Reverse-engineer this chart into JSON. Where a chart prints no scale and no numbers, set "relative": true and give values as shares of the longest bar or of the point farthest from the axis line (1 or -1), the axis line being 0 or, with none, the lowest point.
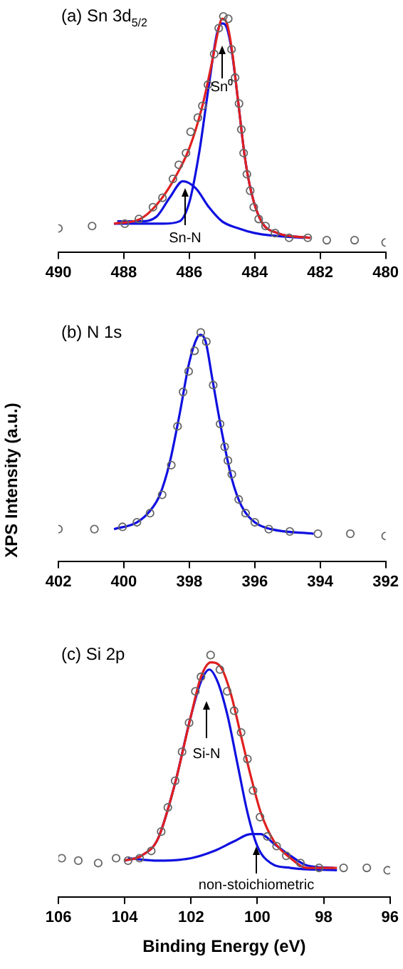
{
  "chart_data": [
    {
      "type": "line",
      "title": "(a) Sn 3d$_{5/2}$",
      "relative": true,
      "tick_labels": "x",
      "xlim": [
        490,
        480
      ],
      "xticks": [
        490,
        488,
        486,
        484,
        482,
        480
      ],
      "annotations": [
        "Sn⁰",
        "Sn-N"
      ],
      "series": [
        {
          "type": "scatter",
          "marker": "circle",
          "color": "#666666",
          "x": [
            490,
            488.97,
            487.97,
            487.54,
            487.11,
            486.82,
            486.5,
            486.32,
            486.1,
            485.96,
            485.74,
            485.6,
            485.43,
            485.24,
            485.1,
            484.96,
            484.81,
            484.71,
            484.6,
            484.48,
            484.41,
            484.34,
            484.24,
            484.14,
            484.03,
            483.88,
            483.67,
            483.38,
            482.95,
            482.38,
            481.8,
            480.95,
            480
          ],
          "values": [
            0.1,
            0.11,
            0.12,
            0.14,
            0.19,
            0.23,
            0.31,
            0.37,
            0.42,
            0.51,
            0.57,
            0.62,
            0.71,
            0.84,
            0.95,
            1,
            0.99,
            0.86,
            0.74,
            0.63,
            0.52,
            0.42,
            0.33,
            0.26,
            0.19,
            0.14,
            0.11,
            0.08,
            0.06,
            0.06,
            0.05,
            0.05,
            0.04
          ]
        },
        {
          "marker": "none",
          "color": "#e02020",
          "x": [
            488.3,
            487.5,
            487,
            486.5,
            486,
            485.6,
            485.3,
            485.1,
            485,
            484.85,
            484.7,
            484.5,
            484.3,
            484.1,
            483.8,
            483.3,
            482.3
          ],
          "values": [
            0.12,
            0.14,
            0.2,
            0.3,
            0.44,
            0.62,
            0.81,
            0.95,
            0.99,
            0.97,
            0.86,
            0.63,
            0.4,
            0.25,
            0.13,
            0.08,
            0.06
          ]
        },
        {
          "marker": "none",
          "color": "#1010e0",
          "x": [
            488.3,
            487.5,
            486.8,
            486.3,
            486,
            485.7,
            485.4,
            485.15,
            485,
            484.85,
            484.7,
            484.5,
            484.3,
            484.1,
            483.8,
            483.3,
            482.3
          ],
          "values": [
            0.12,
            0.12,
            0.12,
            0.13,
            0.21,
            0.42,
            0.71,
            0.93,
            0.97,
            0.95,
            0.85,
            0.63,
            0.4,
            0.25,
            0.13,
            0.08,
            0.06
          ]
        },
        {
          "marker": "none",
          "color": "#1010e0",
          "x": [
            488.2,
            487.5,
            487,
            486.6,
            486.2,
            485.8,
            485.4,
            485,
            484.5,
            484,
            483.5,
            482.5
          ],
          "values": [
            0.13,
            0.13,
            0.15,
            0.23,
            0.3,
            0.27,
            0.19,
            0.13,
            0.1,
            0.08,
            0.07,
            0.06
          ]
        }
      ]
    },
    {
      "type": "line",
      "title": "(b) N 1s",
      "ylabel": "XPS Intensity (a.u.)",
      "relative": true,
      "tick_labels": "x",
      "xlim": [
        402,
        392
      ],
      "xticks": [
        402,
        400,
        398,
        396,
        394,
        392
      ],
      "series": [
        {
          "type": "scatter",
          "marker": "circle",
          "color": "#666666",
          "x": [
            402,
            400.9,
            400.04,
            399.6,
            399.2,
            398.83,
            398.55,
            398.36,
            398.19,
            398.02,
            397.84,
            397.65,
            397.48,
            397.27,
            397.06,
            396.92,
            396.82,
            396.7,
            396.49,
            396.28,
            396,
            395.57,
            394.93,
            394.07,
            393.08,
            392
          ],
          "values": [
            0.14,
            0.14,
            0.15,
            0.17,
            0.21,
            0.29,
            0.42,
            0.59,
            0.74,
            0.83,
            0.92,
            1,
            0.96,
            0.77,
            0.6,
            0.5,
            0.44,
            0.38,
            0.27,
            0.21,
            0.17,
            0.14,
            0.13,
            0.12,
            0.12,
            0.11
          ]
        },
        {
          "marker": "none",
          "color": "#1010e0",
          "x": [
            400.3,
            399.6,
            399.2,
            398.9,
            398.6,
            398.3,
            398,
            397.75,
            397.65,
            397.5,
            397.3,
            397,
            396.7,
            396.4,
            396,
            395.5,
            394.2
          ],
          "values": [
            0.14,
            0.17,
            0.22,
            0.29,
            0.43,
            0.64,
            0.87,
            0.98,
            0.99,
            0.96,
            0.8,
            0.56,
            0.36,
            0.24,
            0.17,
            0.14,
            0.12
          ]
        }
      ]
    },
    {
      "type": "line",
      "title": "(c) Si 2p",
      "xlabel": "Binding Energy (eV)",
      "relative": true,
      "tick_labels": "x",
      "xlim": [
        106,
        96
      ],
      "xticks": [
        106,
        104,
        102,
        100,
        98,
        96
      ],
      "annotations": [
        "Si-N",
        "non-stoichiometric"
      ],
      "series": [
        {
          "type": "scatter",
          "marker": "circle",
          "color": "#666666",
          "x": [
            105.9,
            105.4,
            104.8,
            104.26,
            103.9,
            103.55,
            103.2,
            102.9,
            102.7,
            102.48,
            102.27,
            102.06,
            101.87,
            101.7,
            101.41,
            101.13,
            100.91,
            100.7,
            100.49,
            100.3,
            100.13,
            99.92,
            99.7,
            99.42,
            99.13,
            98.7,
            98.14,
            97.4,
            96.7,
            96.07
          ],
          "values": [
            0.16,
            0.15,
            0.14,
            0.16,
            0.15,
            0.16,
            0.19,
            0.27,
            0.37,
            0.48,
            0.6,
            0.72,
            0.85,
            0.91,
            1,
            0.94,
            0.85,
            0.77,
            0.68,
            0.57,
            0.44,
            0.33,
            0.25,
            0.21,
            0.17,
            0.14,
            0.12,
            0.12,
            0.12,
            0.11
          ]
        },
        {
          "marker": "none",
          "color": "#e02020",
          "x": [
            104,
            103.5,
            103,
            102.5,
            102,
            101.7,
            101.4,
            101.1,
            100.8,
            100.5,
            100.2,
            99.9,
            99.5,
            99,
            98.5,
            97.6
          ],
          "values": [
            0.15,
            0.17,
            0.24,
            0.46,
            0.75,
            0.91,
            0.97,
            0.95,
            0.84,
            0.67,
            0.5,
            0.35,
            0.23,
            0.16,
            0.12,
            0.12
          ]
        },
        {
          "marker": "none",
          "color": "#1010e0",
          "x": [
            104,
            103.5,
            103,
            102.5,
            102,
            101.7,
            101.45,
            101.2,
            100.9,
            100.6,
            100.3,
            100,
            99.6,
            99,
            97.6
          ],
          "values": [
            0.15,
            0.17,
            0.24,
            0.46,
            0.75,
            0.89,
            0.94,
            0.89,
            0.75,
            0.55,
            0.35,
            0.21,
            0.14,
            0.12,
            0.11
          ]
        },
        {
          "marker": "none",
          "color": "#1010e0",
          "x": [
            103.9,
            103,
            102,
            101.3,
            100.7,
            100.2,
            99.9,
            99.5,
            99,
            98.5,
            97.7
          ],
          "values": [
            0.16,
            0.15,
            0.16,
            0.19,
            0.23,
            0.26,
            0.26,
            0.22,
            0.17,
            0.13,
            0.12
          ]
        }
      ]
    }
  ]
}
